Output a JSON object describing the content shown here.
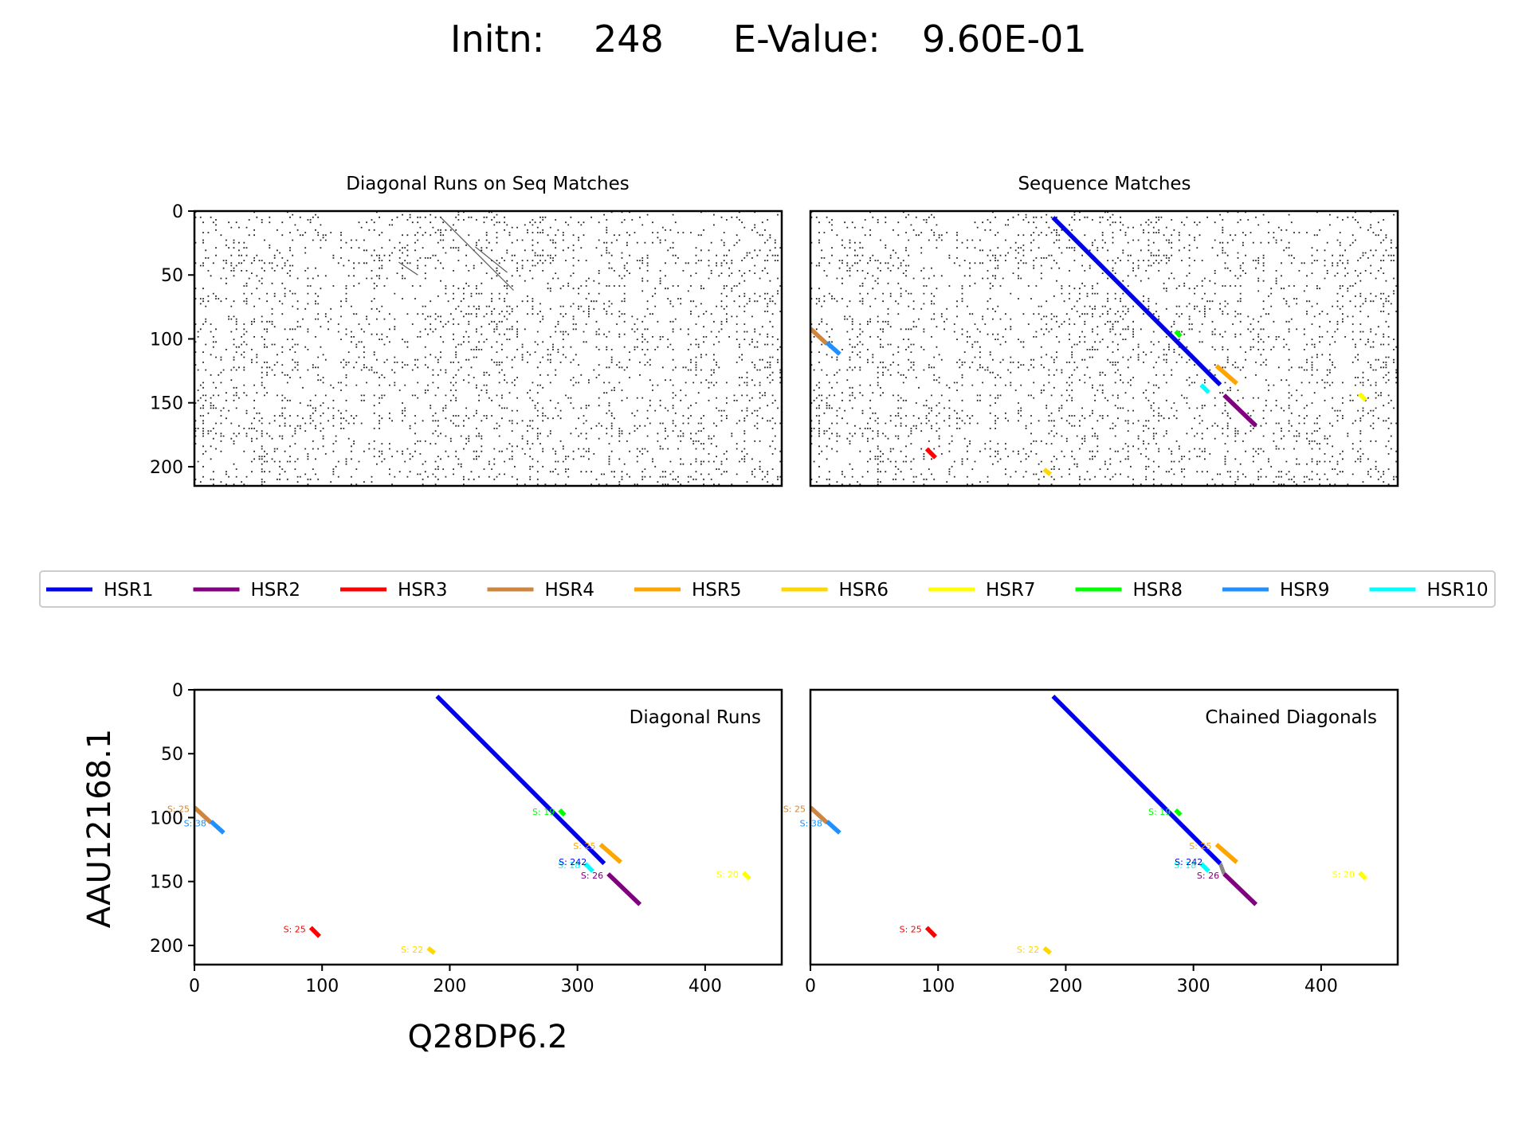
{
  "header": {
    "initn_label": "Initn:",
    "initn_value": "248",
    "evalue_label": "E-Value:",
    "evalue_value": "9.60E-01"
  },
  "axis_titles": {
    "y": "AAU12168.1",
    "x": "Q28DP6.2"
  },
  "chart_data": [
    {
      "type": "scatter",
      "title": "Diagonal Runs on Seq Matches",
      "xlim": [
        0,
        460
      ],
      "ylim": [
        215,
        0
      ],
      "yticks": [
        0,
        50,
        100,
        150,
        200
      ],
      "xticks": [],
      "grid": false,
      "description_of_marks": "dense dot-plot of residue matches; diagonal runs rendered faintly",
      "faint_runs": [
        {
          "x": [
            193,
            250
          ],
          "y": [
            5,
            62
          ]
        },
        {
          "x": [
            220,
            245
          ],
          "y": [
            28,
            48
          ]
        },
        {
          "x": [
            160,
            175
          ],
          "y": [
            40,
            50
          ]
        }
      ]
    },
    {
      "type": "scatter",
      "title": "Sequence Matches",
      "xlim": [
        0,
        460
      ],
      "ylim": [
        215,
        0
      ],
      "yticks": [],
      "xticks": [],
      "grid": false,
      "description_of_marks": "same dot-plot with colored HSR segments overlaid",
      "segments": [
        {
          "name": "HSR1",
          "x": [
            190,
            321
          ],
          "y": [
            5,
            136
          ]
        },
        {
          "name": "HSR2",
          "x": [
            324,
            349
          ],
          "y": [
            144,
            168
          ]
        },
        {
          "name": "HSR3",
          "x": [
            91,
            98
          ],
          "y": [
            186,
            193
          ]
        },
        {
          "name": "HSR4",
          "x": [
            0,
            13
          ],
          "y": [
            92,
            104
          ]
        },
        {
          "name": "HSR5",
          "x": [
            318,
            334
          ],
          "y": [
            121,
            135
          ]
        },
        {
          "name": "HSR6",
          "x": [
            183,
            188
          ],
          "y": [
            202,
            206
          ]
        },
        {
          "name": "HSR7",
          "x": [
            430,
            435
          ],
          "y": [
            143,
            148
          ]
        },
        {
          "name": "HSR8",
          "x": [
            286,
            290
          ],
          "y": [
            94,
            98
          ]
        },
        {
          "name": "HSR9",
          "x": [
            13,
            23
          ],
          "y": [
            103,
            112
          ]
        },
        {
          "name": "HSR10",
          "x": [
            306,
            312
          ],
          "y": [
            136,
            142
          ]
        }
      ]
    },
    {
      "type": "line",
      "title": "",
      "annotation": "Diagonal Runs",
      "xlabel": "Q28DP6.2",
      "ylabel": "AAU12168.1",
      "xlim": [
        0,
        460
      ],
      "ylim": [
        215,
        0
      ],
      "xticks": [
        0,
        100,
        200,
        300,
        400
      ],
      "yticks": [
        0,
        50,
        100,
        150,
        200
      ],
      "grid": false,
      "segments": [
        {
          "name": "HSR1",
          "x": [
            190,
            321
          ],
          "y": [
            5,
            136
          ]
        },
        {
          "name": "HSR2",
          "x": [
            324,
            349
          ],
          "y": [
            144,
            168
          ],
          "label": "S: 26"
        },
        {
          "name": "HSR3",
          "x": [
            91,
            98
          ],
          "y": [
            186,
            193
          ],
          "label": "S: 25"
        },
        {
          "name": "HSR4",
          "x": [
            0,
            13
          ],
          "y": [
            92,
            104
          ],
          "label": "S: 25"
        },
        {
          "name": "HSR5",
          "x": [
            318,
            334
          ],
          "y": [
            121,
            135
          ],
          "label": "S: 25"
        },
        {
          "name": "HSR6",
          "x": [
            183,
            188
          ],
          "y": [
            202,
            206
          ],
          "label": "S: 22"
        },
        {
          "name": "HSR7",
          "x": [
            430,
            435
          ],
          "y": [
            143,
            148
          ],
          "label": "S: 20"
        },
        {
          "name": "HSR8",
          "x": [
            286,
            290
          ],
          "y": [
            94,
            98
          ],
          "label": "S: 19"
        },
        {
          "name": "HSR9",
          "x": [
            13,
            23
          ],
          "y": [
            103,
            112
          ],
          "label": "S: 38"
        },
        {
          "name": "HSR10",
          "x": [
            306,
            312
          ],
          "y": [
            136,
            142
          ],
          "label": "S: 18"
        }
      ],
      "hsr1_label": "S: 242"
    },
    {
      "type": "line",
      "title": "",
      "annotation": "Chained Diagonals",
      "xlim": [
        0,
        460
      ],
      "ylim": [
        215,
        0
      ],
      "xticks": [
        0,
        100,
        200,
        300,
        400
      ],
      "yticks": [],
      "grid": false,
      "segments": [
        {
          "name": "HSR1",
          "x": [
            190,
            321
          ],
          "y": [
            5,
            136
          ]
        },
        {
          "name": "HSR2",
          "x": [
            324,
            349
          ],
          "y": [
            144,
            168
          ],
          "label": "S: 26"
        },
        {
          "name": "HSR3",
          "x": [
            91,
            98
          ],
          "y": [
            186,
            193
          ],
          "label": "S: 25"
        },
        {
          "name": "HSR4",
          "x": [
            0,
            13
          ],
          "y": [
            92,
            104
          ],
          "label": "S: 25"
        },
        {
          "name": "HSR5",
          "x": [
            318,
            334
          ],
          "y": [
            121,
            135
          ],
          "label": "S: 25"
        },
        {
          "name": "HSR6",
          "x": [
            183,
            188
          ],
          "y": [
            202,
            206
          ],
          "label": "S: 22"
        },
        {
          "name": "HSR7",
          "x": [
            430,
            435
          ],
          "y": [
            143,
            148
          ],
          "label": "S: 20"
        },
        {
          "name": "HSR8",
          "x": [
            286,
            290
          ],
          "y": [
            94,
            98
          ],
          "label": "S: 19"
        },
        {
          "name": "HSR9",
          "x": [
            13,
            23
          ],
          "y": [
            103,
            112
          ],
          "label": "S: 38"
        },
        {
          "name": "HSR10",
          "x": [
            306,
            312
          ],
          "y": [
            136,
            142
          ],
          "label": "S: 18"
        }
      ],
      "hsr1_label": "S: 242",
      "chain_links": [
        {
          "x": [
            321,
            324
          ],
          "y": [
            136,
            144
          ]
        }
      ]
    }
  ],
  "legend": {
    "placement": "center",
    "items": [
      {
        "name": "HSR1",
        "color": "#0000ee"
      },
      {
        "name": "HSR2",
        "color": "#800080"
      },
      {
        "name": "HSR3",
        "color": "#ff0000"
      },
      {
        "name": "HSR4",
        "color": "#cd853f"
      },
      {
        "name": "HSR5",
        "color": "#ffa500"
      },
      {
        "name": "HSR6",
        "color": "#ffd700"
      },
      {
        "name": "HSR7",
        "color": "#ffff00"
      },
      {
        "name": "HSR8",
        "color": "#00ff00"
      },
      {
        "name": "HSR9",
        "color": "#1e90ff"
      },
      {
        "name": "HSR10",
        "color": "#00ffff"
      }
    ]
  }
}
